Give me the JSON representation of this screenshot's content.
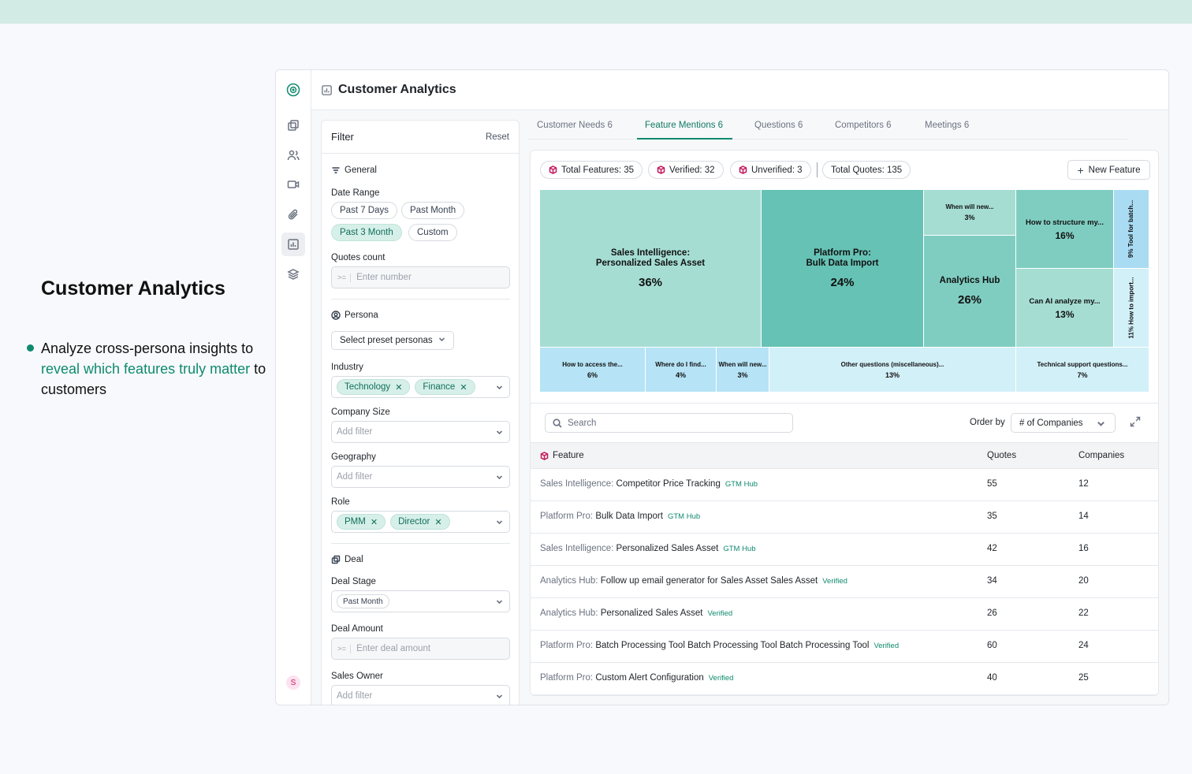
{
  "promo": {
    "title": "Customer Analytics",
    "bullet_pre": "Analyze cross-persona insights to ",
    "bullet_highlight": "reveal which features truly matter",
    "bullet_post": " to customers"
  },
  "header": {
    "title": "Customer Analytics"
  },
  "filter": {
    "title": "Filter",
    "reset": "Reset",
    "general_label": "General",
    "date_range_label": "Date Range",
    "date_options": [
      "Past 7 Days",
      "Past Month",
      "Past 3 Month",
      "Custom"
    ],
    "date_selected": "Past 3 Month",
    "quotes_label": "Quotes count",
    "quotes_prefix": ">=",
    "quotes_placeholder": "Enter number",
    "persona_label": "Persona",
    "persona_select": "Select preset personas",
    "industry_label": "Industry",
    "industry_tags": [
      "Technology",
      "Finance"
    ],
    "company_size_label": "Company Size",
    "company_size_placeholder": "Add filter",
    "geography_label": "Geography",
    "geography_placeholder": "Add filter",
    "role_label": "Role",
    "role_tags": [
      "PMM",
      "Director"
    ],
    "deal_label": "Deal",
    "deal_stage_label": "Deal Stage",
    "deal_stage_value": "Past Month",
    "deal_amount_label": "Deal Amount",
    "deal_amount_prefix": ">=",
    "deal_amount_placeholder": "Enter deal amount",
    "sales_owner_label": "Sales Owner",
    "sales_owner_placeholder": "Add filter"
  },
  "tabs": [
    "Customer Needs 6",
    "Feature Mentions 6",
    "Questions 6",
    "Competitors 6",
    "Meetings 6"
  ],
  "active_tab": "Feature Mentions 6",
  "stats": {
    "total_features": "Total Features: 35",
    "verified": "Verified: 32",
    "unverified": "Unverified: 3",
    "total_quotes": "Total Quotes: 135"
  },
  "new_feature": "New Feature",
  "treemap": [
    {
      "name": "Sales Intelligence:\nPersonalized Sales Asset",
      "pct": "36%",
      "color": "#a5ddd3"
    },
    {
      "name": "Platform Pro:\nBulk Data Import",
      "pct": "24%",
      "color": "#66c2b5"
    },
    {
      "name": "When will new...",
      "pct": "3%",
      "color": "#a5ddd3"
    },
    {
      "name": "Analytics Hub",
      "pct": "26%",
      "color": "#7fcdc1"
    },
    {
      "name": "How to structure my...",
      "pct": "16%",
      "color": "#7fcdc1"
    },
    {
      "name": "Can AI analyze my...",
      "pct": "13%",
      "color": "#a5ddd3"
    },
    {
      "name": "9%  Tool for batch...",
      "pct": "",
      "color": "#a9dcf3"
    },
    {
      "name": "11%  How to import...",
      "pct": "",
      "color": "#d2f0f8"
    },
    {
      "name": "How to access the...",
      "pct": "6%",
      "color": "#b6e3f6"
    },
    {
      "name": "Where do I find...",
      "pct": "4%",
      "color": "#b6e3f6"
    },
    {
      "name": "When will new...",
      "pct": "3%",
      "color": "#b6e3f6"
    },
    {
      "name": "Other questions (miscellaneous)...",
      "pct": "13%",
      "color": "#d2f0f8"
    },
    {
      "name": "Technical support questions...",
      "pct": "7%",
      "color": "#d2f0f8"
    }
  ],
  "search_placeholder": "Search",
  "order_by_label": "Order by",
  "order_by_value": "# of Companies",
  "table": {
    "headers": [
      "Feature",
      "Quotes",
      "Companies"
    ],
    "rows": [
      {
        "product": "Sales Intelligence:",
        "name": "Competitor Price Tracking",
        "badge": "GTM Hub",
        "quotes": "55",
        "companies": "12"
      },
      {
        "product": "Platform Pro:",
        "name": "Bulk Data Import",
        "badge": "GTM Hub",
        "quotes": "35",
        "companies": "14"
      },
      {
        "product": "Sales Intelligence:",
        "name": "Personalized Sales Asset",
        "badge": "GTM Hub",
        "quotes": "42",
        "companies": "16"
      },
      {
        "product": "Analytics Hub:",
        "name": "Follow up email generator for Sales Asset Sales Asset",
        "badge": "Verified",
        "quotes": "34",
        "companies": "20"
      },
      {
        "product": "Analytics Hub:",
        "name": "Personalized Sales Asset",
        "badge": "Verified",
        "quotes": "26",
        "companies": "22"
      },
      {
        "product": "Platform Pro:",
        "name": "Batch Processing Tool Batch Processing Tool Batch Processing Tool",
        "badge": "Verified",
        "quotes": "60",
        "companies": "24"
      },
      {
        "product": "Platform Pro:",
        "name": "Custom Alert Configuration",
        "badge": "Verified",
        "quotes": "40",
        "companies": "25"
      }
    ]
  },
  "user_initial": "S",
  "colors": {
    "accent": "#0f8a6e",
    "topbar": "#d3ebe5"
  }
}
